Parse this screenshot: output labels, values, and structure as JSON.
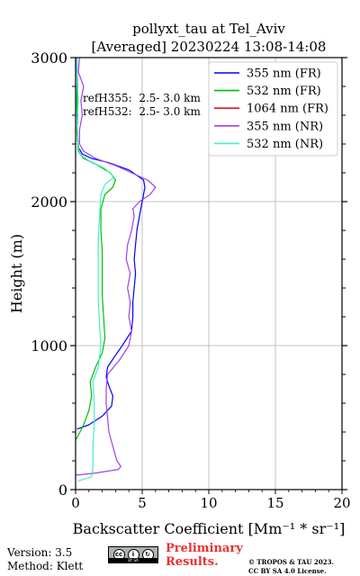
{
  "chart_data": {
    "type": "line",
    "title_line1": "pollyxt_tau at Tel_Aviv",
    "title_line2": "[Averaged] 20230224 13:08-14:08",
    "xlabel": "Backscatter Coefficient [Mm⁻¹ * sr⁻¹]",
    "ylabel": "Height (m)",
    "xlim": [
      0,
      20
    ],
    "ylim": [
      0,
      3000
    ],
    "xticks": [
      "0",
      "5",
      "10",
      "15",
      "20"
    ],
    "yticks": [
      "0",
      "1000",
      "2000",
      "3000"
    ],
    "grid": true,
    "legend_position": "top-right",
    "annotations": [
      "refH355:  2.5- 3.0 km",
      "refH532:  2.5- 3.0 km"
    ],
    "series": [
      {
        "name": "355 nm (FR)",
        "color": "#0000ff",
        "points": [
          [
            0.1,
            420
          ],
          [
            1.0,
            450
          ],
          [
            2.0,
            510
          ],
          [
            2.7,
            580
          ],
          [
            2.8,
            650
          ],
          [
            2.5,
            720
          ],
          [
            2.3,
            780
          ],
          [
            2.4,
            850
          ],
          [
            2.9,
            920
          ],
          [
            3.5,
            1000
          ],
          [
            4.2,
            1100
          ],
          [
            4.3,
            1200
          ],
          [
            4.3,
            1300
          ],
          [
            4.4,
            1400
          ],
          [
            4.5,
            1500
          ],
          [
            4.4,
            1600
          ],
          [
            4.5,
            1700
          ],
          [
            4.6,
            1800
          ],
          [
            4.8,
            1900
          ],
          [
            5.0,
            2000
          ],
          [
            5.2,
            2100
          ],
          [
            5.1,
            2150
          ],
          [
            4.0,
            2220
          ],
          [
            2.5,
            2270
          ],
          [
            1.2,
            2300
          ],
          [
            0.5,
            2330
          ],
          [
            0.2,
            2380
          ],
          [
            0.1,
            2500
          ],
          [
            0.15,
            2600
          ],
          [
            0.1,
            2700
          ],
          [
            0.15,
            2800
          ],
          [
            0.1,
            2900
          ],
          [
            0.1,
            3000
          ]
        ]
      },
      {
        "name": "532 nm (FR)",
        "color": "#00c000",
        "points": [
          [
            0.05,
            350
          ],
          [
            0.6,
            450
          ],
          [
            1.0,
            550
          ],
          [
            1.2,
            650
          ],
          [
            1.1,
            750
          ],
          [
            1.5,
            850
          ],
          [
            2.0,
            950
          ],
          [
            2.2,
            1050
          ],
          [
            2.1,
            1200
          ],
          [
            2.0,
            1350
          ],
          [
            2.0,
            1500
          ],
          [
            2.0,
            1650
          ],
          [
            1.9,
            1800
          ],
          [
            1.9,
            1950
          ],
          [
            2.2,
            2050
          ],
          [
            2.8,
            2100
          ],
          [
            3.0,
            2150
          ],
          [
            2.6,
            2200
          ],
          [
            1.5,
            2260
          ],
          [
            0.6,
            2300
          ],
          [
            0.2,
            2350
          ],
          [
            0.1,
            2500
          ],
          [
            0.1,
            2700
          ],
          [
            0.1,
            2900
          ],
          [
            0.1,
            3000
          ]
        ]
      },
      {
        "name": "1064 nm (FR)",
        "color": "#e0141e",
        "points": []
      },
      {
        "name": "355 nm (NR)",
        "color": "#a040f0",
        "points": [
          [
            0.0,
            100
          ],
          [
            1.5,
            115
          ],
          [
            3.2,
            140
          ],
          [
            3.4,
            160
          ],
          [
            3.1,
            200
          ],
          [
            2.8,
            300
          ],
          [
            2.5,
            400
          ],
          [
            2.4,
            500
          ],
          [
            2.3,
            600
          ],
          [
            2.3,
            700
          ],
          [
            2.4,
            800
          ],
          [
            3.3,
            900
          ],
          [
            4.0,
            1000
          ],
          [
            4.2,
            1100
          ],
          [
            4.0,
            1200
          ],
          [
            4.1,
            1300
          ],
          [
            3.9,
            1400
          ],
          [
            4.1,
            1500
          ],
          [
            3.8,
            1600
          ],
          [
            3.9,
            1700
          ],
          [
            4.2,
            1800
          ],
          [
            4.4,
            1900
          ],
          [
            4.3,
            1950
          ],
          [
            4.8,
            2000
          ],
          [
            5.6,
            2050
          ],
          [
            6.0,
            2100
          ],
          [
            5.4,
            2150
          ],
          [
            3.0,
            2250
          ],
          [
            1.5,
            2300
          ],
          [
            0.6,
            2350
          ],
          [
            0.3,
            2400
          ],
          [
            0.3,
            2500
          ],
          [
            0.5,
            2600
          ],
          [
            0.4,
            2700
          ],
          [
            0.6,
            2800
          ],
          [
            0.2,
            2900
          ],
          [
            0.3,
            3000
          ]
        ]
      },
      {
        "name": "532 nm (NR)",
        "color": "#40f0c8",
        "points": [
          [
            0.2,
            60
          ],
          [
            1.2,
            90
          ],
          [
            1.3,
            150
          ],
          [
            1.3,
            300
          ],
          [
            1.4,
            450
          ],
          [
            1.4,
            600
          ],
          [
            1.3,
            750
          ],
          [
            1.7,
            850
          ],
          [
            1.9,
            1000
          ],
          [
            1.8,
            1150
          ],
          [
            1.7,
            1300
          ],
          [
            1.7,
            1450
          ],
          [
            1.7,
            1600
          ],
          [
            1.7,
            1750
          ],
          [
            1.8,
            1900
          ],
          [
            1.9,
            2050
          ],
          [
            2.2,
            2120
          ],
          [
            2.9,
            2170
          ],
          [
            2.2,
            2230
          ],
          [
            0.9,
            2290
          ],
          [
            0.3,
            2330
          ],
          [
            0.2,
            2400
          ],
          [
            0.1,
            2550
          ],
          [
            0.2,
            2700
          ],
          [
            0.1,
            2850
          ],
          [
            0.1,
            3000
          ]
        ]
      }
    ]
  },
  "footer": {
    "version": "Version: 3.5",
    "method": "Method: Klett",
    "license_badge": "BY SA",
    "preliminary_line1": "Preliminary",
    "preliminary_line2": "Results.",
    "copyright_line1": "© TROPOS & TAU 2023.",
    "copyright_line2": "CC BY SA 4.0 License."
  }
}
